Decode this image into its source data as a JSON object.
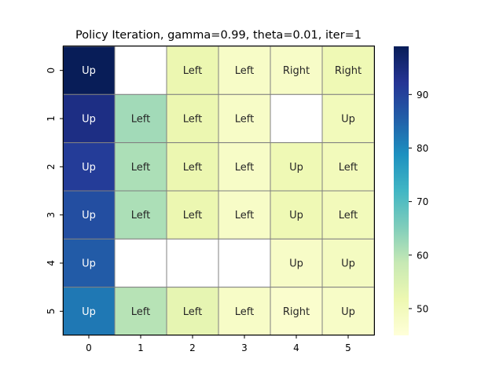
{
  "chart_data": {
    "type": "heatmap",
    "title": "Policy Iteration, gamma=0.99, theta=0.01, iter=1",
    "xlabel": "",
    "ylabel": "",
    "x_ticks": [
      "0",
      "1",
      "2",
      "3",
      "4",
      "5"
    ],
    "y_ticks": [
      "0",
      "1",
      "2",
      "3",
      "4",
      "5"
    ],
    "colormap": "YlGnBu",
    "vmin": 45,
    "vmax": 99,
    "colorbar_ticks": [
      "50",
      "60",
      "70",
      "80",
      "90"
    ],
    "colorbar_tick_values": [
      50,
      60,
      70,
      80,
      90
    ],
    "values": [
      [
        99,
        null,
        52,
        48,
        48,
        51
      ],
      [
        94,
        62,
        52,
        48,
        null,
        50
      ],
      [
        91,
        61,
        52,
        48,
        51,
        50
      ],
      [
        88,
        61,
        52,
        48,
        51,
        50
      ],
      [
        86,
        null,
        null,
        null,
        48,
        49
      ],
      [
        82,
        60,
        53,
        48,
        47,
        48
      ]
    ],
    "labels": [
      [
        "Up",
        "",
        "Left",
        "Left",
        "Right",
        "Right"
      ],
      [
        "Up",
        "Left",
        "Left",
        "Left",
        "",
        "Up"
      ],
      [
        "Up",
        "Left",
        "Left",
        "Left",
        "Up",
        "Left"
      ],
      [
        "Up",
        "Left",
        "Left",
        "Left",
        "Up",
        "Left"
      ],
      [
        "Up",
        "",
        "",
        "",
        "Up",
        "Up"
      ],
      [
        "Up",
        "Left",
        "Left",
        "Left",
        "Right",
        "Up"
      ]
    ]
  }
}
